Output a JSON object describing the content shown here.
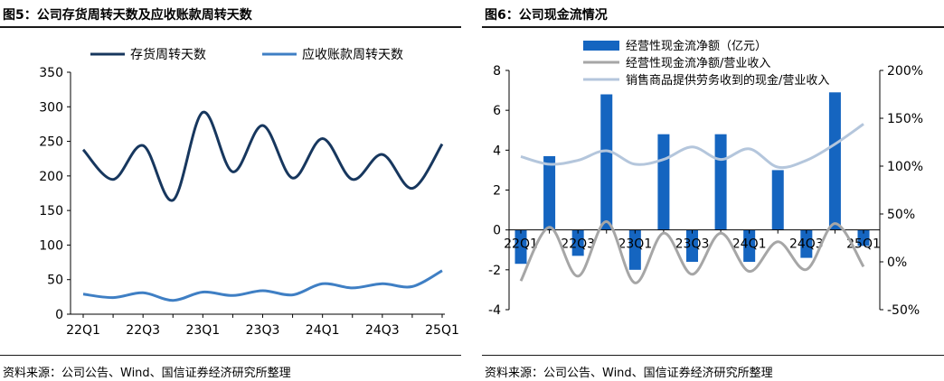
{
  "left": {
    "title": "图5：公司存货周转天数及应收账款周转天数",
    "source": "资料来源：公司公告、Wind、国信证券经济研究所整理"
  },
  "right": {
    "title": "图6：公司现金流情况",
    "source": "资料来源：公司公告、Wind、国信证券经济研究所整理"
  },
  "chart_data": [
    {
      "type": "line",
      "x": [
        "22Q1",
        "22Q2",
        "22Q3",
        "22Q4",
        "23Q1",
        "23Q2",
        "23Q3",
        "23Q4",
        "24Q1",
        "24Q2",
        "24Q3",
        "24Q4",
        "25Q1"
      ],
      "x_tick_labels": [
        "22Q1",
        "22Q3",
        "23Q1",
        "23Q3",
        "24Q1",
        "24Q3",
        "25Q1"
      ],
      "ylim": [
        0,
        350
      ],
      "y_ticks": [
        0,
        50,
        100,
        150,
        200,
        250,
        300,
        350
      ],
      "legend_position": "top",
      "grid": false,
      "series": [
        {
          "name": "存货周转天数",
          "color": "#17375e",
          "values": [
            238,
            195,
            244,
            165,
            292,
            206,
            273,
            197,
            254,
            195,
            231,
            182,
            246
          ]
        },
        {
          "name": "应收账款周转天数",
          "color": "#3f7fc4",
          "values": [
            29,
            24,
            31,
            20,
            32,
            27,
            34,
            28,
            44,
            38,
            44,
            40,
            63
          ]
        }
      ]
    },
    {
      "type": "bar",
      "x": [
        "22Q1",
        "22Q2",
        "22Q3",
        "22Q4",
        "23Q1",
        "23Q2",
        "23Q3",
        "23Q4",
        "24Q1",
        "24Q2",
        "24Q3",
        "24Q4",
        "25Q1"
      ],
      "x_tick_labels": [
        "22Q1",
        "22Q3",
        "23Q1",
        "23Q3",
        "24Q1",
        "24Q3",
        "25Q1"
      ],
      "ylim": [
        -4,
        8
      ],
      "y_ticks": [
        -4,
        -2,
        0,
        2,
        4,
        6,
        8
      ],
      "y2lim": [
        -0.5,
        2.0
      ],
      "y2_tick_labels": [
        "-50%",
        "0%",
        "50%",
        "100%",
        "150%",
        "200%"
      ],
      "y2_ticks": [
        -0.5,
        0,
        0.5,
        1.0,
        1.5,
        2.0
      ],
      "legend_position": "top",
      "grid": false,
      "series": [
        {
          "name": "经营性现金流净额（亿元）",
          "kind": "bar",
          "axis": "left",
          "color": "#1565c0",
          "values": [
            -1.7,
            3.7,
            -1.3,
            6.8,
            -2.0,
            4.8,
            -1.6,
            4.8,
            -1.6,
            3.0,
            -1.4,
            6.9,
            -0.8
          ]
        },
        {
          "name": "经营性现金流净额/营业收入",
          "kind": "line",
          "axis": "right",
          "color": "#a6a6a6",
          "values": [
            -0.2,
            0.36,
            -0.15,
            0.42,
            -0.22,
            0.3,
            -0.13,
            0.3,
            -0.1,
            0.21,
            -0.08,
            0.4,
            -0.05
          ]
        },
        {
          "name": "销售商品提供劳务收到的现金/营业收入",
          "kind": "line",
          "axis": "right",
          "color": "#b4c6dc",
          "values": [
            1.1,
            1.02,
            1.06,
            1.16,
            1.02,
            1.07,
            1.2,
            1.07,
            1.18,
            0.99,
            1.06,
            1.23,
            1.44
          ]
        }
      ]
    }
  ]
}
